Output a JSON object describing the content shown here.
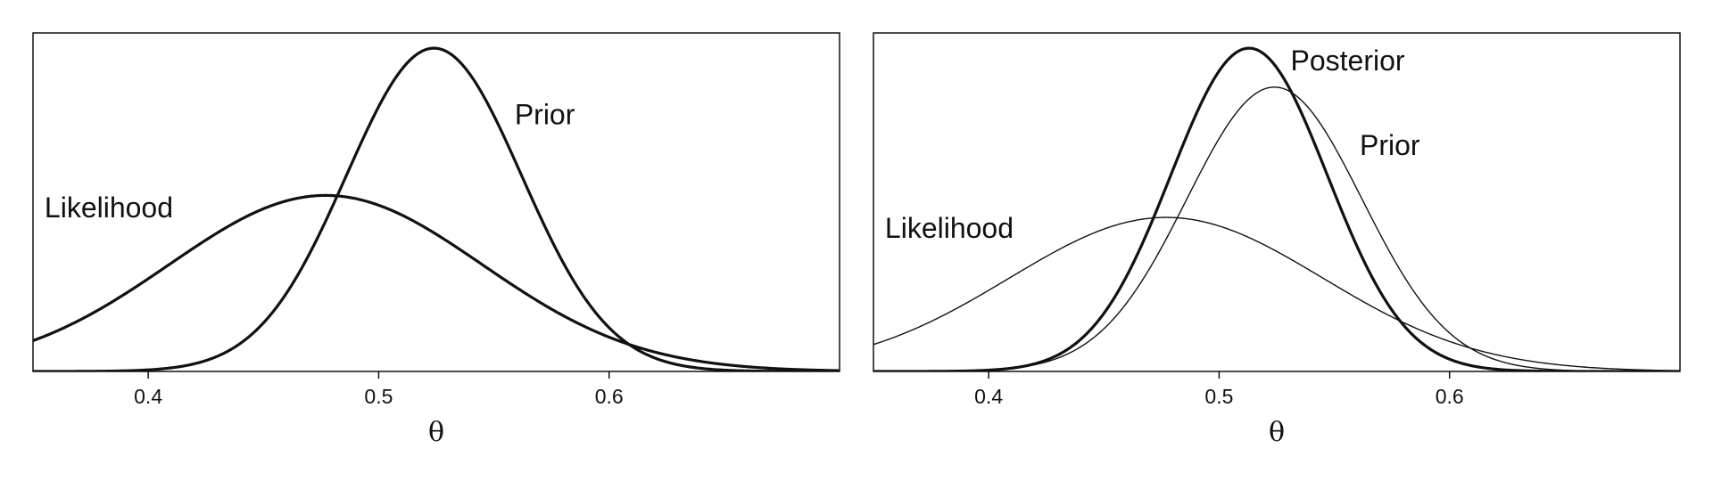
{
  "chart_data": [
    {
      "type": "line",
      "title": "",
      "xlabel": "θ",
      "ylabel": "",
      "xlim": [
        0.35,
        0.7
      ],
      "ylim": [
        0,
        1.0
      ],
      "x_ticks": [
        0.4,
        0.5,
        0.6
      ],
      "x_tick_labels": [
        "0.4",
        "0.5",
        "0.6"
      ],
      "grid": false,
      "legend": "none",
      "series": [
        {
          "name": "Prior",
          "distribution": "normal",
          "mean": 0.524,
          "sd": 0.038,
          "peak_height": 0.955,
          "line": "thick"
        },
        {
          "name": "Likelihood",
          "distribution": "normal",
          "mean": 0.477,
          "sd": 0.068,
          "peak_height": 0.52,
          "line": "thick"
        }
      ],
      "labels": [
        {
          "text": "Prior",
          "series": "Prior",
          "x": 0.559,
          "y": 0.73
        },
        {
          "text": "Likelihood",
          "series": "Likelihood",
          "x": 0.355,
          "y": 0.455
        }
      ]
    },
    {
      "type": "line",
      "title": "",
      "xlabel": "θ",
      "ylabel": "",
      "xlim": [
        0.35,
        0.7
      ],
      "ylim": [
        0,
        1.0
      ],
      "x_ticks": [
        0.4,
        0.5,
        0.6
      ],
      "x_tick_labels": [
        "0.4",
        "0.5",
        "0.6"
      ],
      "grid": false,
      "legend": "none",
      "series": [
        {
          "name": "Posterior",
          "distribution": "normal",
          "mean": 0.513,
          "sd": 0.034,
          "peak_height": 0.955,
          "line": "thick"
        },
        {
          "name": "Prior",
          "distribution": "normal",
          "mean": 0.524,
          "sd": 0.038,
          "peak_height": 0.84,
          "line": "thin"
        },
        {
          "name": "Likelihood",
          "distribution": "normal",
          "mean": 0.477,
          "sd": 0.068,
          "peak_height": 0.455,
          "line": "thin"
        }
      ],
      "labels": [
        {
          "text": "Posterior",
          "series": "Posterior",
          "x": 0.531,
          "y": 0.89
        },
        {
          "text": "Prior",
          "series": "Prior",
          "x": 0.561,
          "y": 0.64
        },
        {
          "text": "Likelihood",
          "series": "Likelihood",
          "x": 0.355,
          "y": 0.395
        }
      ]
    }
  ],
  "colors": {
    "line": "#111111",
    "background": "#ffffff"
  }
}
